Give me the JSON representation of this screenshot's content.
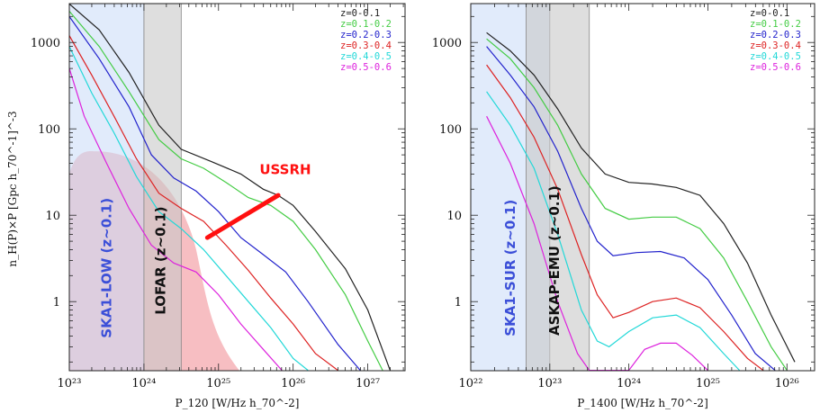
{
  "figure": {
    "ylabel": "n_H(P)×P [Gpc h_70^-1]^-3"
  },
  "chart_data": [
    {
      "type": "line",
      "xlabel": "P_120 [W/Hz h_70^-2]",
      "ylabel": "n_H(P)×P [Gpc h_70^-1]^-3",
      "x_scale": "log",
      "y_scale": "log",
      "xlim_log10": [
        23,
        27.5
      ],
      "ylim_log10": [
        -0.8,
        3.45
      ],
      "x_ticks": [
        23,
        24,
        25,
        26,
        27
      ],
      "x_tick_labels": [
        "10²³",
        "10²⁴",
        "10²⁵",
        "10²⁶",
        "10²⁷"
      ],
      "y_ticks": [
        1,
        10,
        100,
        1000
      ],
      "y_tick_labels": [
        "1",
        "10",
        "100",
        "1000"
      ],
      "legend_position": "top-right",
      "series": [
        {
          "name": "z=0-0.1",
          "color": "#222222",
          "x_log10": [
            23.0,
            23.4,
            23.8,
            24.2,
            24.5,
            24.9,
            25.3,
            25.6,
            25.8,
            26.0,
            26.3,
            26.7,
            27.0,
            27.3
          ],
          "y": [
            2800,
            1400,
            450,
            110,
            58,
            42,
            30,
            20,
            17,
            13,
            6.5,
            2.4,
            0.8,
            0.16
          ]
        },
        {
          "name": "z=0.1-0.2",
          "color": "#44cc44",
          "x_log10": [
            23.0,
            23.4,
            23.8,
            24.2,
            24.5,
            24.8,
            25.1,
            25.4,
            25.7,
            26.0,
            26.3,
            26.7,
            27.0,
            27.2
          ],
          "y": [
            2300,
            900,
            270,
            75,
            45,
            35,
            24,
            16,
            13,
            8.5,
            4.0,
            1.2,
            0.35,
            0.16
          ]
        },
        {
          "name": "z=0.2-0.3",
          "color": "#2222cc",
          "x_log10": [
            23.0,
            23.4,
            23.8,
            24.1,
            24.4,
            24.7,
            25.0,
            25.3,
            25.6,
            25.9,
            26.2,
            26.6,
            26.9
          ],
          "y": [
            2000,
            650,
            180,
            50,
            27,
            19,
            11,
            5.5,
            3.5,
            2.2,
            1.0,
            0.32,
            0.16
          ]
        },
        {
          "name": "z=0.3-0.4",
          "color": "#dd2222",
          "x_log10": [
            23.0,
            23.3,
            23.6,
            23.9,
            24.2,
            24.5,
            24.8,
            25.1,
            25.4,
            25.7,
            26.0,
            26.3,
            26.6
          ],
          "y": [
            1200,
            420,
            140,
            45,
            18,
            12,
            8.5,
            4.5,
            2.3,
            1.1,
            0.55,
            0.25,
            0.16
          ]
        },
        {
          "name": "z=0.4-0.5",
          "color": "#22d8d8",
          "x_log10": [
            23.0,
            23.3,
            23.6,
            23.9,
            24.2,
            24.5,
            24.8,
            25.1,
            25.4,
            25.7,
            26.0,
            26.2
          ],
          "y": [
            900,
            260,
            90,
            28,
            11,
            7,
            4,
            2.0,
            1.0,
            0.5,
            0.22,
            0.16
          ]
        },
        {
          "name": "z=0.5-0.6",
          "color": "#dd22dd",
          "x_log10": [
            23.0,
            23.2,
            23.5,
            23.8,
            24.1,
            24.4,
            24.7,
            25.0,
            25.3,
            25.6,
            25.85
          ],
          "y": [
            500,
            140,
            40,
            12,
            4.5,
            2.8,
            2.2,
            1.2,
            0.55,
            0.28,
            0.16
          ]
        }
      ],
      "bands": [
        {
          "label": "SKA1-LOW (z~0.1)",
          "x_log10_range": [
            23.0,
            24.0
          ],
          "fill": "#c9daf8",
          "label_color": "#3b4fd8"
        },
        {
          "label": "LOFAR (z~0.1)",
          "x_log10_range": [
            24.0,
            24.5
          ],
          "fill": "#c8c8c8",
          "label_color": "#111111"
        }
      ],
      "shaded_region": {
        "fill": "#f4a8ae"
      },
      "annotation": {
        "text": "USSRH",
        "color": "#ff1010",
        "segment_x_log10": [
          24.85,
          25.8
        ],
        "segment_y": [
          5.5,
          17
        ]
      }
    },
    {
      "type": "line",
      "xlabel": "P_1400 [W/Hz h_70^-2]",
      "ylabel": "",
      "x_scale": "log",
      "y_scale": "log",
      "xlim_log10": [
        22,
        26.35
      ],
      "ylim_log10": [
        -0.8,
        3.45
      ],
      "x_ticks": [
        22,
        23,
        24,
        25,
        26
      ],
      "x_tick_labels": [
        "10²²",
        "10²³",
        "10²⁴",
        "10²⁵",
        "10²⁶"
      ],
      "y_ticks": [
        1,
        10,
        100,
        1000
      ],
      "y_tick_labels": [
        "1",
        "10",
        "100",
        "1000"
      ],
      "legend_position": "top-right",
      "series": [
        {
          "name": "z=0-0.1",
          "color": "#222222",
          "x_log10": [
            22.2,
            22.5,
            22.8,
            23.1,
            23.4,
            23.7,
            24.0,
            24.3,
            24.6,
            24.9,
            25.2,
            25.5,
            25.8,
            26.1
          ],
          "y": [
            1300,
            800,
            420,
            170,
            60,
            30,
            24,
            23,
            21,
            17,
            8,
            2.8,
            0.7,
            0.2
          ]
        },
        {
          "name": "z=0.1-0.2",
          "color": "#44cc44",
          "x_log10": [
            22.2,
            22.5,
            22.8,
            23.1,
            23.4,
            23.7,
            24.0,
            24.3,
            24.6,
            24.9,
            25.2,
            25.5,
            25.8,
            26.0
          ],
          "y": [
            1100,
            650,
            300,
            110,
            30,
            12,
            9,
            9.5,
            9.5,
            7,
            3.2,
            1.0,
            0.3,
            0.16
          ]
        },
        {
          "name": "z=0.2-0.3",
          "color": "#2222cc",
          "x_log10": [
            22.2,
            22.5,
            22.8,
            23.1,
            23.4,
            23.6,
            23.8,
            24.1,
            24.4,
            24.7,
            25.0,
            25.3,
            25.6,
            25.85
          ],
          "y": [
            900,
            420,
            180,
            55,
            12,
            5,
            3.4,
            3.7,
            3.8,
            3.2,
            1.8,
            0.7,
            0.25,
            0.16
          ]
        },
        {
          "name": "z=0.3-0.4",
          "color": "#dd2222",
          "x_log10": [
            22.2,
            22.5,
            22.8,
            23.1,
            23.4,
            23.6,
            23.8,
            24.0,
            24.3,
            24.6,
            24.9,
            25.2,
            25.5,
            25.7
          ],
          "y": [
            550,
            230,
            80,
            20,
            3.5,
            1.2,
            0.65,
            0.75,
            1.0,
            1.1,
            0.85,
            0.45,
            0.22,
            0.16
          ]
        },
        {
          "name": "z=0.4-0.5",
          "color": "#22d8d8",
          "x_log10": [
            22.2,
            22.5,
            22.8,
            23.1,
            23.4,
            23.6,
            23.75,
            24.0,
            24.3,
            24.6,
            24.9,
            25.2,
            25.4
          ],
          "y": [
            270,
            110,
            35,
            6,
            0.8,
            0.35,
            0.3,
            0.45,
            0.65,
            0.7,
            0.5,
            0.25,
            0.16
          ]
        },
        {
          "name": "z=0.5-0.6",
          "color": "#dd22dd",
          "x_log10": [
            22.2,
            22.5,
            22.8,
            23.1,
            23.35,
            23.5,
            24.0,
            24.2,
            24.4,
            24.6,
            24.8,
            25.0
          ],
          "y": [
            140,
            40,
            8,
            1.0,
            0.25,
            0.16,
            0.16,
            0.28,
            0.33,
            0.33,
            0.24,
            0.16
          ]
        }
      ],
      "bands": [
        {
          "label": "SKA1-SUR (z~0.1)",
          "x_log10_range": [
            22.0,
            23.0
          ],
          "fill": "#c9daf8",
          "label_color": "#3b4fd8"
        },
        {
          "label": "ASKAP-EMU (z~0.1)",
          "x_log10_range": [
            22.7,
            23.5
          ],
          "fill": "#c8c8c8",
          "label_color": "#111111"
        }
      ]
    }
  ]
}
